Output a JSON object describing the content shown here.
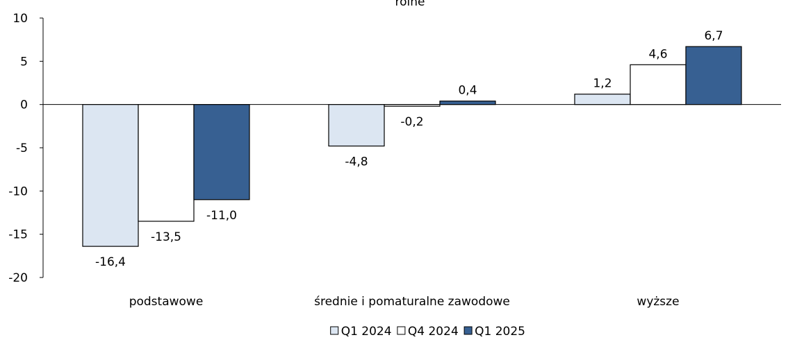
{
  "chart_data": {
    "type": "bar",
    "title": "rolne",
    "categories": [
      "podstawowe",
      "średnie i pomaturalne zawodowe",
      "wyższe"
    ],
    "series": [
      {
        "name": "Q1 2024",
        "values": [
          -16.4,
          -4.8,
          1.2
        ],
        "color": "#dce6f2"
      },
      {
        "name": "Q4 2024",
        "values": [
          -13.5,
          -0.2,
          4.6
        ],
        "color": "#ffffff"
      },
      {
        "name": "Q1 2025",
        "values": [
          -11.0,
          0.4,
          6.7
        ],
        "color": "#376092"
      }
    ],
    "data_labels": [
      [
        "-16,4",
        "-4,8",
        "1,2"
      ],
      [
        "-13,5",
        "-0,2",
        "4,6"
      ],
      [
        "-11,0",
        "0,4",
        "6,7"
      ]
    ],
    "yticks": [
      10,
      5,
      0,
      -5,
      -10,
      -15,
      -20
    ],
    "ylim": [
      -20,
      10
    ],
    "xlabel": "",
    "ylabel": "",
    "grid": false,
    "legend_position": "bottom",
    "stroke_color": "#000000"
  }
}
